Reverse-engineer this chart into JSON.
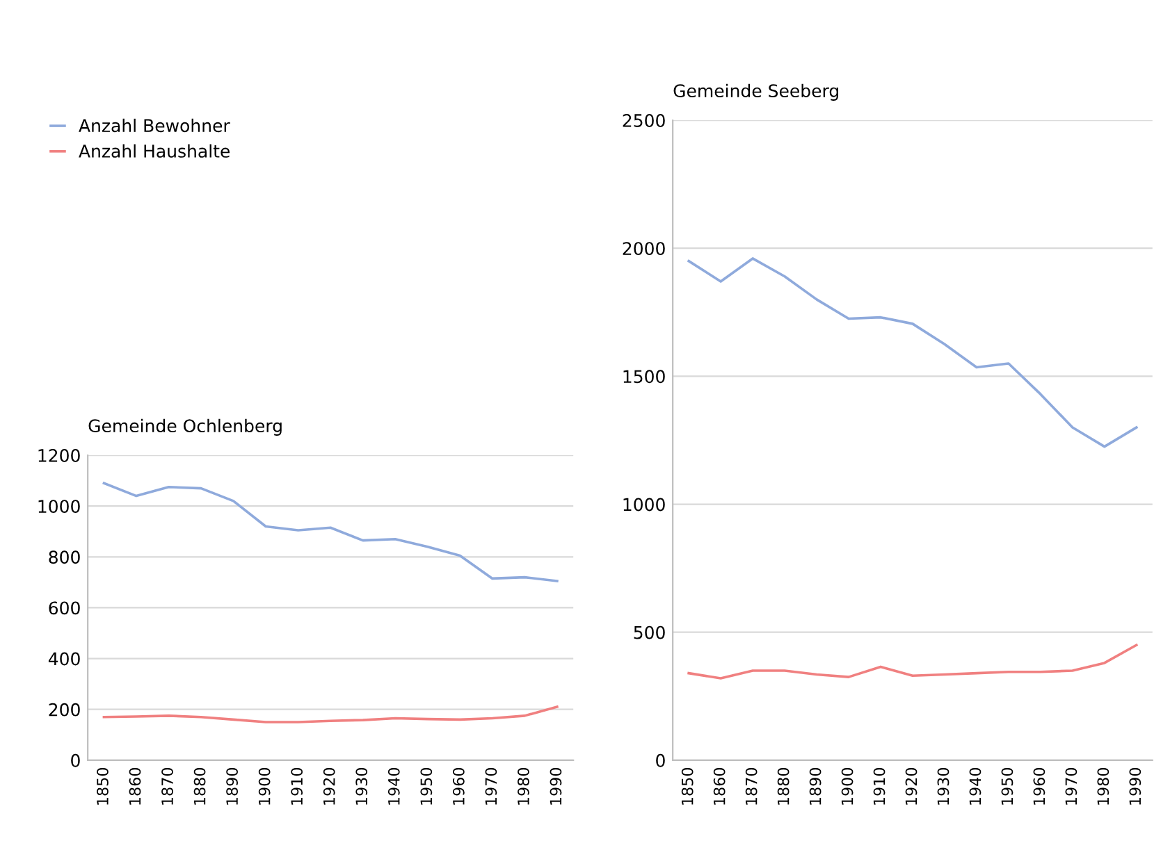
{
  "chart_data": [
    {
      "type": "line",
      "title": "Gemeinde Ochlenberg",
      "categories": [
        "1850",
        "1860",
        "1870",
        "1880",
        "1890",
        "1900",
        "1910",
        "1920",
        "1930",
        "1940",
        "1950",
        "1960",
        "1970",
        "1980",
        "1990"
      ],
      "series": [
        {
          "name": "Anzahl Bewohner",
          "color": "#8faadc",
          "values": [
            1090,
            1040,
            1075,
            1070,
            1020,
            920,
            905,
            915,
            865,
            870,
            840,
            805,
            715,
            720,
            705
          ]
        },
        {
          "name": "Anzahl Haushalte",
          "color": "#f08080",
          "values": [
            170,
            172,
            175,
            170,
            160,
            150,
            150,
            155,
            158,
            165,
            162,
            160,
            165,
            175,
            210
          ]
        }
      ],
      "ylim": [
        0,
        1200
      ],
      "yticks": [
        0,
        200,
        400,
        600,
        800,
        1000,
        1200
      ],
      "grid": "y",
      "legend": "top left"
    },
    {
      "type": "line",
      "title": "Gemeinde Seeberg",
      "categories": [
        "1850",
        "1860",
        "1870",
        "1880",
        "1890",
        "1900",
        "1910",
        "1920",
        "1930",
        "1940",
        "1950",
        "1960",
        "1970",
        "1980",
        "1990"
      ],
      "series": [
        {
          "color": "#8faadc",
          "values": [
            1950,
            1870,
            1960,
            1890,
            1800,
            1725,
            1730,
            1705,
            1625,
            1535,
            1550,
            1430,
            1300,
            1225,
            1300
          ]
        },
        {
          "color": "#f08080",
          "values": [
            340,
            320,
            350,
            350,
            335,
            325,
            365,
            330,
            335,
            340,
            345,
            345,
            350,
            380,
            450
          ]
        }
      ],
      "ylim": [
        0,
        2500
      ],
      "yticks": [
        0,
        500,
        1000,
        1500,
        2000,
        2500
      ],
      "grid": "y"
    }
  ]
}
